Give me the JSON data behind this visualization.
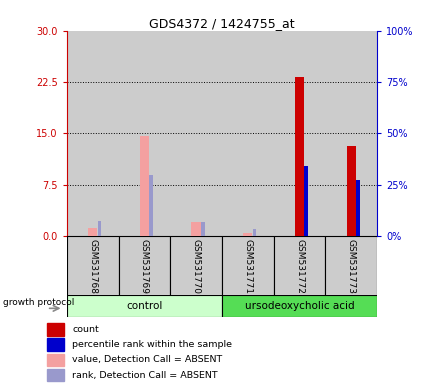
{
  "title": "GDS4372 / 1424755_at",
  "samples": [
    "GSM531768",
    "GSM531769",
    "GSM531770",
    "GSM531771",
    "GSM531772",
    "GSM531773"
  ],
  "group_control_label": "control",
  "group_treatment_label": "ursodeoxycholic acid",
  "growth_protocol_label": "growth protocol",
  "bars": [
    {
      "sample": "GSM531768",
      "absent": true,
      "value": 1.2,
      "rank": 2.2
    },
    {
      "sample": "GSM531769",
      "absent": true,
      "value": 14.6,
      "rank": 9.0
    },
    {
      "sample": "GSM531770",
      "absent": true,
      "value": 2.0,
      "rank": 2.1
    },
    {
      "sample": "GSM531771",
      "absent": true,
      "value": 0.5,
      "rank": 1.1
    },
    {
      "sample": "GSM531772",
      "absent": false,
      "value": 23.2,
      "rank": 10.2
    },
    {
      "sample": "GSM531773",
      "absent": false,
      "value": 13.2,
      "rank": 8.2
    }
  ],
  "ylim_left": [
    0,
    30
  ],
  "yticks_left": [
    0,
    7.5,
    15,
    22.5,
    30
  ],
  "ylim_right": [
    0,
    100
  ],
  "yticks_right": [
    0,
    25,
    50,
    75,
    100
  ],
  "color_count": "#cc0000",
  "color_rank": "#0000cc",
  "color_absent_value": "#f4a0a0",
  "color_absent_rank": "#9999cc",
  "color_control_bg": "#ccffcc",
  "color_treatment_bg": "#55dd55",
  "color_sample_box": "#cccccc",
  "left_axis_color": "#cc0000",
  "right_axis_color": "#0000cc",
  "legend": [
    {
      "label": "count",
      "color": "#cc0000"
    },
    {
      "label": "percentile rank within the sample",
      "color": "#0000cc"
    },
    {
      "label": "value, Detection Call = ABSENT",
      "color": "#f4a0a0"
    },
    {
      "label": "rank, Detection Call = ABSENT",
      "color": "#9999cc"
    }
  ]
}
